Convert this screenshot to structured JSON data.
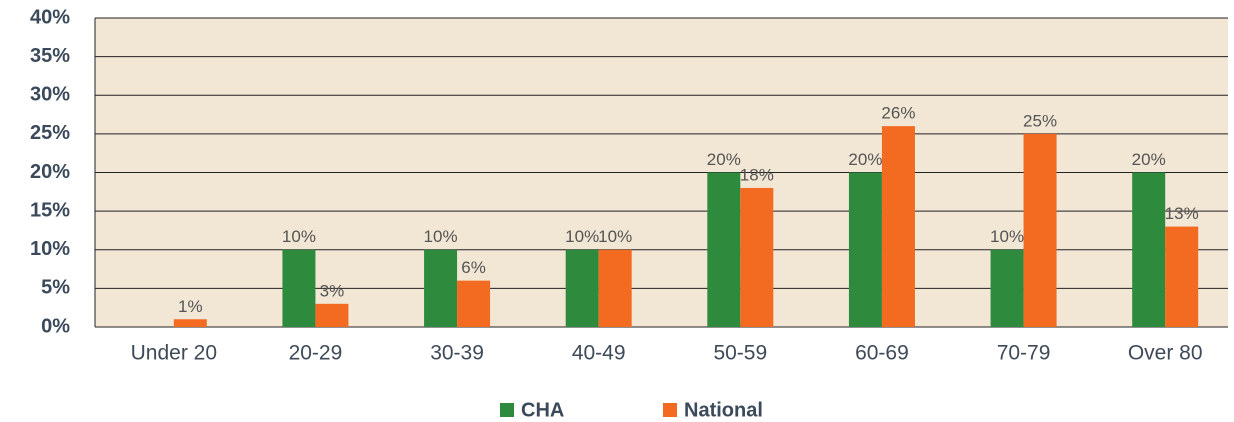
{
  "chart_data": {
    "type": "bar",
    "categories": [
      "Under 20",
      "20-29",
      "30-39",
      "40-49",
      "50-59",
      "60-69",
      "70-79",
      "Over 80"
    ],
    "series": [
      {
        "name": "CHA",
        "color": "#2e8b3e",
        "values": [
          null,
          10,
          10,
          10,
          20,
          20,
          10,
          20
        ],
        "value_labels": [
          null,
          "10%",
          "10%",
          "10%",
          "20%",
          "20%",
          "10%",
          "20%"
        ]
      },
      {
        "name": "National",
        "color": "#f26b21",
        "values": [
          1,
          3,
          6,
          10,
          18,
          26,
          25,
          13
        ],
        "value_labels": [
          "1%",
          "3%",
          "6%",
          "10%",
          "18%",
          "26%",
          "25%",
          "13%"
        ]
      }
    ],
    "ylim": [
      0,
      40
    ],
    "yticks": [
      {
        "value": 0,
        "label": "0%"
      },
      {
        "value": 5,
        "label": "5%"
      },
      {
        "value": 10,
        "label": "10%"
      },
      {
        "value": 15,
        "label": "15%"
      },
      {
        "value": 20,
        "label": "20%"
      },
      {
        "value": 25,
        "label": "25%"
      },
      {
        "value": 30,
        "label": "30%"
      },
      {
        "value": 35,
        "label": "35%"
      },
      {
        "value": 40,
        "label": "40%"
      }
    ],
    "grid": true,
    "legend": "bottom",
    "background": "#f2e6d4"
  }
}
